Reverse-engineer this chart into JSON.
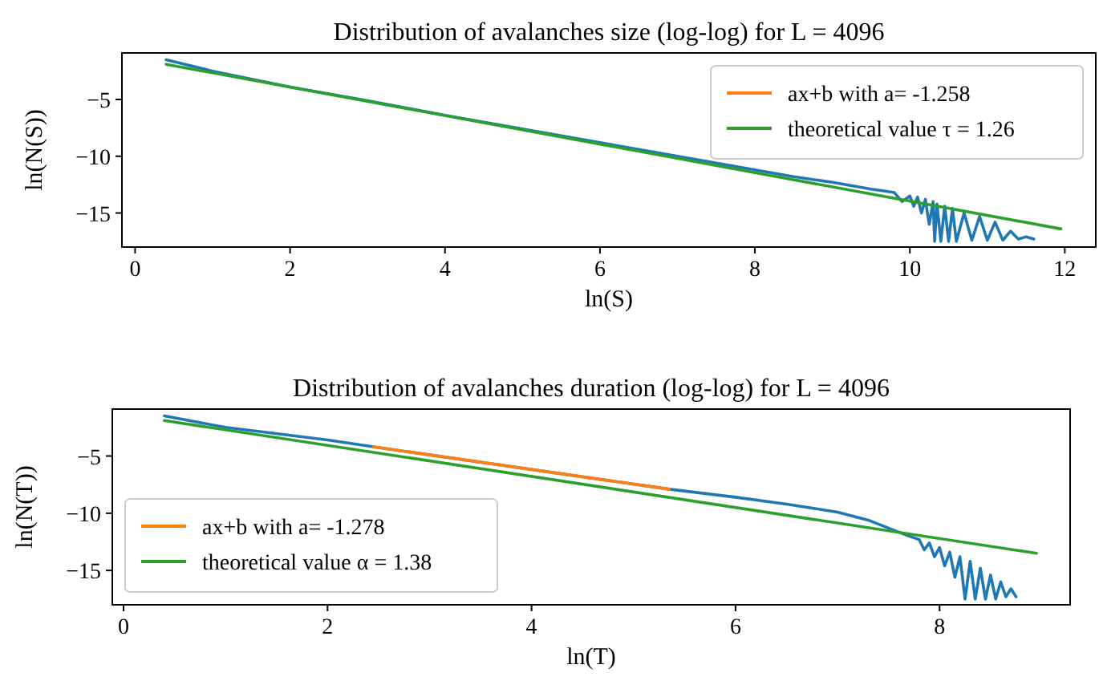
{
  "chart_data": [
    {
      "type": "line",
      "title": "Distribution of avalanches size (log-log) for L = 4096",
      "xlabel": "ln(S)",
      "ylabel": "ln(N(S))",
      "xlim": [
        -0.17,
        12.4
      ],
      "ylim": [
        -18,
        -0.9
      ],
      "xticks": [
        0,
        2,
        4,
        6,
        8,
        10,
        12
      ],
      "yticks": [
        {
          "value": -5,
          "label": "−5"
        },
        {
          "value": -10,
          "label": "−10"
        },
        {
          "value": -15,
          "label": "−15"
        }
      ],
      "legend": "top right",
      "grid": false,
      "series": [
        {
          "color": "#1f77b4",
          "x": [
            0.4,
            1,
            2,
            3,
            4,
            5,
            6,
            7,
            8,
            8.5,
            9,
            9.5,
            9.8,
            9.9,
            10,
            10.05,
            10.1,
            10.15,
            10.2,
            10.25,
            10.3,
            10.32,
            10.35,
            10.4,
            10.45,
            10.5,
            10.55,
            10.6,
            10.7,
            10.8,
            10.9,
            11,
            11.1,
            11.2,
            11.3,
            11.4,
            11.5,
            11.6
          ],
          "values": [
            -1.5,
            -2.5,
            -3.9,
            -5.1,
            -6.4,
            -7.6,
            -8.8,
            -10,
            -11.2,
            -11.8,
            -12.3,
            -12.9,
            -13.2,
            -14,
            -13.5,
            -14.4,
            -13.6,
            -15,
            -13.8,
            -16,
            -14,
            -17.5,
            -14.2,
            -17.5,
            -14.4,
            -17.5,
            -14.6,
            -17.5,
            -15,
            -17.4,
            -15.3,
            -17.4,
            -15.8,
            -17.4,
            -16.6,
            -17.3,
            -17.1,
            -17.3
          ]
        },
        {
          "name": "ax+b with a= -1.258",
          "color": "#ff7f0e"
        },
        {
          "name": "theoretical value τ = 1.26",
          "color": "#2ca02c",
          "x": [
            0.4,
            11.95
          ],
          "values": [
            -1.9,
            -16.4
          ]
        }
      ]
    },
    {
      "type": "line",
      "title": "Distribution of avalanches duration (log-log) for L = 4096",
      "xlabel": "ln(T)",
      "ylabel": "ln(N(T))",
      "xlim": [
        -0.11,
        9.28
      ],
      "ylim": [
        -18,
        -0.9
      ],
      "xticks": [
        0,
        2,
        4,
        6,
        8
      ],
      "yticks": [
        {
          "value": -5,
          "label": "−5"
        },
        {
          "value": -10,
          "label": "−10"
        },
        {
          "value": -15,
          "label": "−15"
        }
      ],
      "legend": "bottom left",
      "grid": false,
      "series": [
        {
          "color": "#1f77b4",
          "x": [
            0.4,
            1,
            2,
            2.45,
            5.35,
            6,
            6.5,
            7,
            7.3,
            7.5,
            7.7,
            7.8,
            7.85,
            7.9,
            7.95,
            8,
            8.05,
            8.1,
            8.15,
            8.2,
            8.25,
            8.3,
            8.35,
            8.4,
            8.45,
            8.5,
            8.55,
            8.6,
            8.65,
            8.7,
            8.75
          ],
          "values": [
            -1.5,
            -2.5,
            -3.6,
            -4.2,
            -7.9,
            -8.6,
            -9.2,
            -9.9,
            -10.6,
            -11.3,
            -12,
            -12.3,
            -13.2,
            -12.6,
            -13.8,
            -13,
            -14.6,
            -13.4,
            -15.6,
            -13.8,
            -17.5,
            -14.2,
            -17.5,
            -14.8,
            -17.5,
            -15.4,
            -17.5,
            -16,
            -17.3,
            -16.6,
            -17.3
          ]
        },
        {
          "name": "ax+b with a= -1.278",
          "color": "#ff7f0e",
          "x": [
            2.45,
            5.35
          ],
          "values": [
            -4.2,
            -7.9
          ]
        },
        {
          "name": "theoretical value α = 1.38",
          "color": "#2ca02c",
          "x": [
            0.4,
            8.95
          ],
          "values": [
            -1.9,
            -13.5
          ]
        }
      ]
    }
  ]
}
